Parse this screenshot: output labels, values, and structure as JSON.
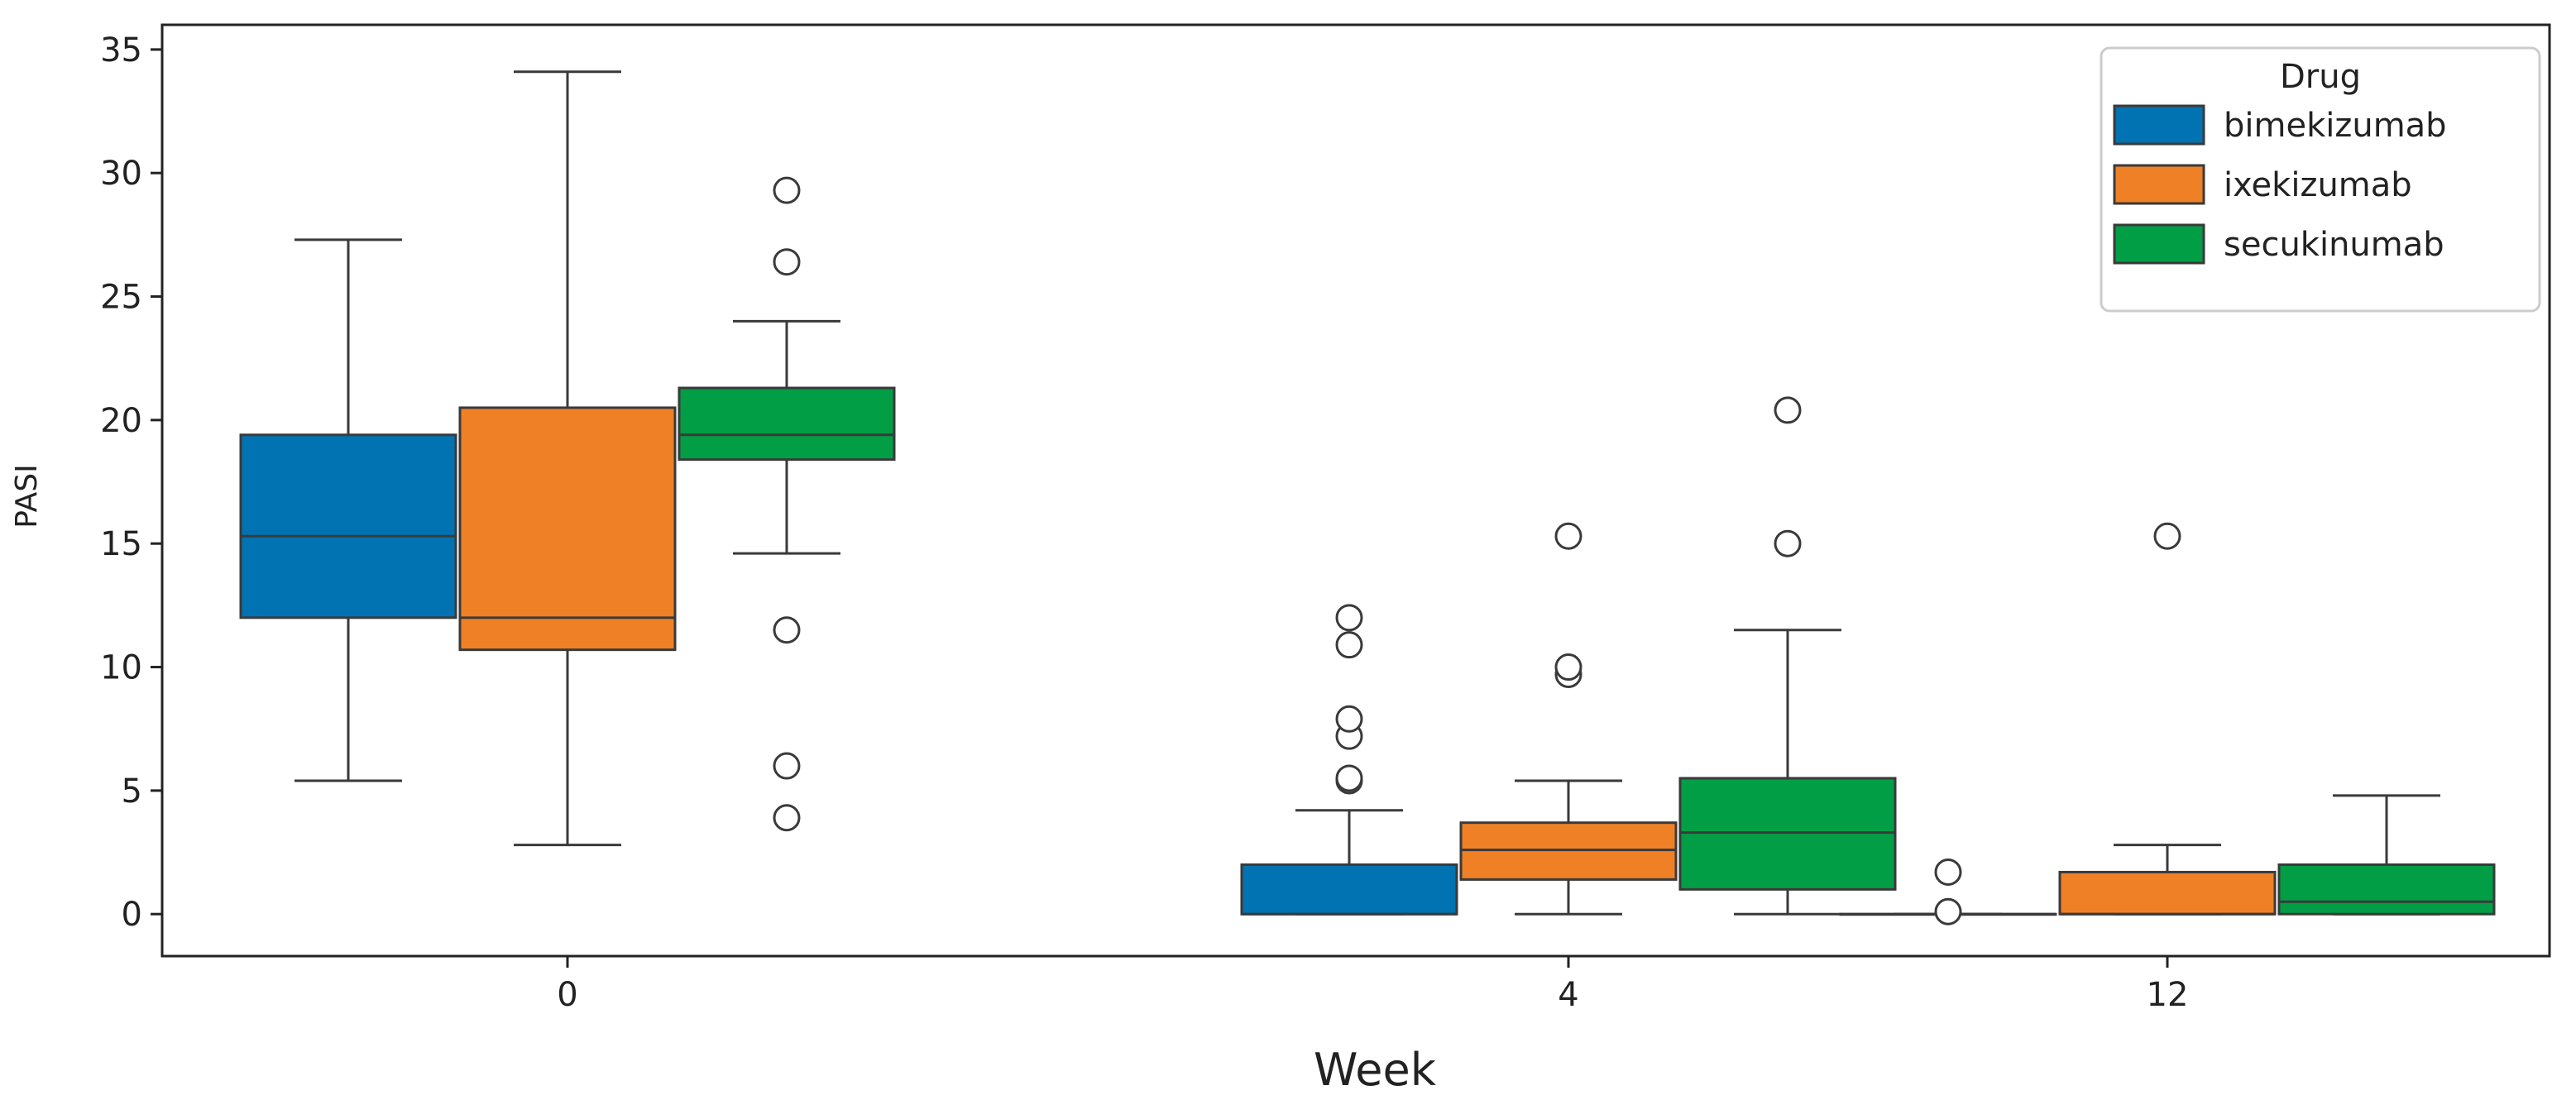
{
  "chart_data": {
    "type": "boxplot",
    "xlabel": "Week",
    "ylabel": "PASI",
    "ylim": [
      -1.7,
      36
    ],
    "yticks": [
      0,
      5,
      10,
      15,
      20,
      25,
      30,
      35
    ],
    "categories": [
      "0",
      "4",
      "12"
    ],
    "legend": {
      "title": "Drug",
      "placement": "top-right",
      "entries": [
        "bimekizumab",
        "ixekizumab",
        "secukinumab"
      ]
    },
    "colors": {
      "bimekizumab": "#0173b2",
      "ixekizumab": "#f08026",
      "secukinumab": "#029e45",
      "line": "#3a3a3a"
    },
    "series": [
      {
        "name": "bimekizumab",
        "boxes": [
          {
            "week": "0",
            "min": 5.4,
            "q1": 12.0,
            "median": 15.3,
            "q3": 19.4,
            "max": 27.3,
            "outliers": []
          },
          {
            "week": "4",
            "min": 0.0,
            "q1": 0.0,
            "median": 0.0,
            "q3": 2.0,
            "max": 4.2,
            "outliers": [
              5.4,
              5.5,
              7.2,
              7.9,
              10.9,
              12.0
            ]
          },
          {
            "week": "12",
            "min": 0.0,
            "q1": 0.0,
            "median": 0.0,
            "q3": 0.0,
            "max": 0.0,
            "outliers": [
              0.1,
              1.7
            ]
          }
        ]
      },
      {
        "name": "ixekizumab",
        "boxes": [
          {
            "week": "0",
            "min": 2.8,
            "q1": 10.7,
            "median": 12.0,
            "q3": 20.5,
            "max": 34.1,
            "outliers": []
          },
          {
            "week": "4",
            "min": 0.0,
            "q1": 1.4,
            "median": 2.6,
            "q3": 3.7,
            "max": 5.4,
            "outliers": [
              9.7,
              10.0,
              15.3
            ]
          },
          {
            "week": "12",
            "min": 0.0,
            "q1": 0.0,
            "median": 0.0,
            "q3": 1.7,
            "max": 2.8,
            "outliers": [
              15.3
            ]
          }
        ]
      },
      {
        "name": "secukinumab",
        "boxes": [
          {
            "week": "0",
            "min": 14.6,
            "q1": 18.4,
            "median": 19.4,
            "q3": 21.3,
            "max": 24.0,
            "outliers": [
              3.9,
              6.0,
              11.5,
              26.4,
              29.3
            ]
          },
          {
            "week": "4",
            "min": 0.0,
            "q1": 1.0,
            "median": 3.3,
            "q3": 5.5,
            "max": 11.5,
            "outliers": [
              15.0,
              20.4
            ]
          },
          {
            "week": "12",
            "min": 0.0,
            "q1": 0.0,
            "median": 0.5,
            "q3": 2.0,
            "max": 4.8,
            "outliers": []
          }
        ]
      }
    ]
  }
}
